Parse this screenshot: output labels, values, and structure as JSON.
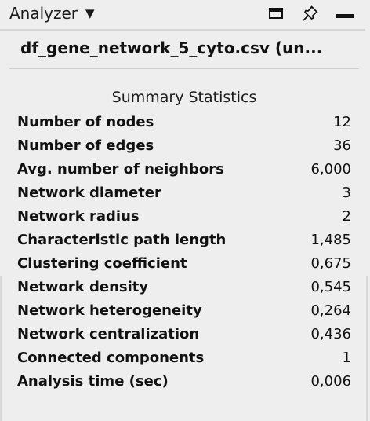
{
  "header": {
    "title": "Analyzer",
    "dropdown_glyph": "▼",
    "icons": [
      "window-icon",
      "pin-icon",
      "minimize-icon"
    ]
  },
  "file_title": "df_gene_network_5_cyto.csv (un...",
  "summary": {
    "heading": "Summary Statistics",
    "rows": [
      {
        "label": "Number of nodes",
        "value": "12"
      },
      {
        "label": "Number of edges",
        "value": "36"
      },
      {
        "label": "Avg. number of neighbors",
        "value": "6,000"
      },
      {
        "label": "Network diameter",
        "value": "3"
      },
      {
        "label": "Network radius",
        "value": "2"
      },
      {
        "label": "Characteristic path length",
        "value": "1,485"
      },
      {
        "label": "Clustering coefficient",
        "value": "0,675"
      },
      {
        "label": "Network density",
        "value": "0,545"
      },
      {
        "label": "Network heterogeneity",
        "value": "0,264"
      },
      {
        "label": "Network centralization",
        "value": "0,436"
      },
      {
        "label": "Connected components",
        "value": "1"
      },
      {
        "label": "Analysis time (sec)",
        "value": "0,006"
      }
    ]
  }
}
